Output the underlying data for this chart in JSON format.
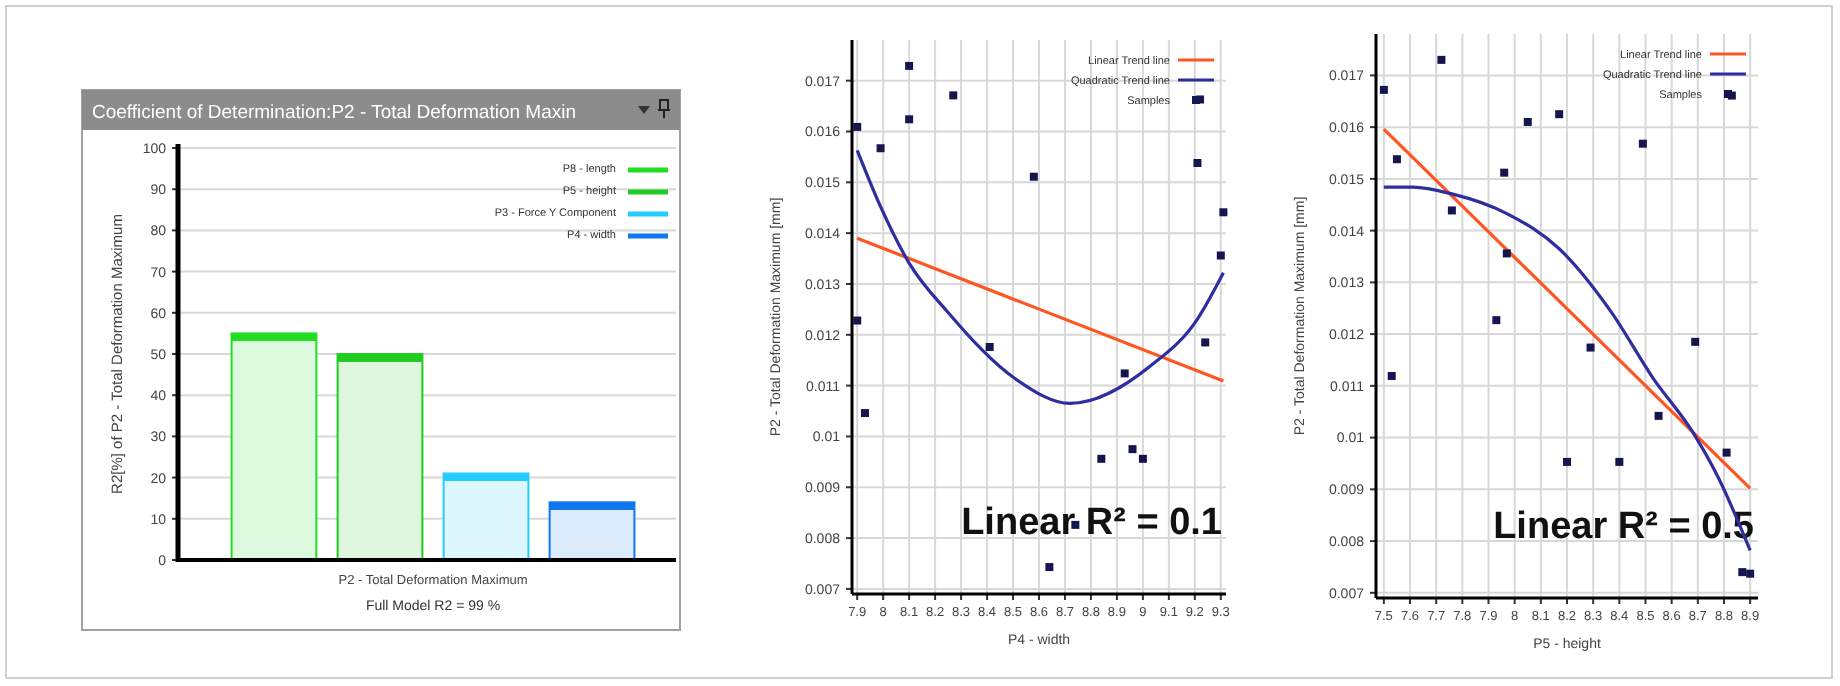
{
  "chart_data": [
    {
      "type": "bar",
      "title": "Coefficient of Determination:P2 - Total Deformation Maxin",
      "ylabel": "R2[%] of P2 - Total Deformation Maximum",
      "categories": [
        "P2 - Total Deformation Maximum"
      ],
      "series": [
        {
          "name": "P8 - length",
          "color": "#22dd22",
          "values": [
            55
          ]
        },
        {
          "name": "P5 - height",
          "color": "#22cc22",
          "values": [
            50
          ]
        },
        {
          "name": "P3 - Force Y Component",
          "color": "#22ccff",
          "values": [
            21
          ]
        },
        {
          "name": "P4 - width",
          "color": "#1177ee",
          "values": [
            14
          ]
        }
      ],
      "ylim": [
        0,
        100
      ],
      "yticks": [
        0,
        10,
        20,
        30,
        40,
        50,
        60,
        70,
        80,
        90,
        100
      ],
      "grid": "y",
      "legend": "top right",
      "annotations": [
        "Full Model R2 = 99 %"
      ]
    },
    {
      "type": "scatter",
      "xlabel": "P4 - width",
      "ylabel": "P2 - Total Deformation Maximum  [mm]",
      "series": [
        {
          "name": "Linear Trend line",
          "type": "line",
          "color": "#ff5522",
          "x": [
            7.9,
            9.31
          ],
          "values": [
            0.0139,
            0.01109
          ]
        },
        {
          "name": "Quadratic Trend line",
          "type": "line",
          "color": "#2e2e9e",
          "x": [
            7.9,
            7.99,
            8.1,
            8.25,
            8.51,
            8.72,
            9.03,
            9.21,
            9.31
          ],
          "values": [
            0.01563,
            0.01452,
            0.01341,
            0.01244,
            0.01113,
            0.01065,
            0.01139,
            0.01231,
            0.01322
          ]
        },
        {
          "name": "Samples",
          "type": "scatter",
          "color": "#151550",
          "marker": "square",
          "x": [
            7.9,
            7.9,
            7.93,
            7.99,
            8.1,
            8.1,
            8.27,
            8.41,
            8.58,
            8.64,
            8.74,
            8.84,
            8.93,
            8.96,
            9.0,
            9.21,
            9.22,
            9.24,
            9.3,
            9.31
          ],
          "values": [
            0.01609,
            0.01228,
            0.01046,
            0.01567,
            0.01624,
            0.01729,
            0.01671,
            0.01176,
            0.01511,
            0.00743,
            0.00826,
            0.00956,
            0.01124,
            0.00975,
            0.00956,
            0.01538,
            0.01663,
            0.01185,
            0.01356,
            0.01441
          ]
        }
      ],
      "xlim": [
        7.88,
        9.32
      ],
      "xticks": [
        7.9,
        8,
        8.1,
        8.2,
        8.3,
        8.4,
        8.5,
        8.6,
        8.7,
        8.8,
        8.9,
        9,
        9.1,
        9.2,
        9.3
      ],
      "ylim": [
        0.0069,
        0.0178
      ],
      "yticks": [
        0.007,
        0.008,
        0.009,
        0.01,
        0.011,
        0.012,
        0.013,
        0.014,
        0.015,
        0.016,
        0.017
      ],
      "grid": true,
      "legend": "top right",
      "annotations": [
        "Linear R² = 0.1"
      ]
    },
    {
      "type": "scatter",
      "xlabel": "P5 - height",
      "ylabel": "P2 - Total Deformation Maximum  [mm]",
      "series": [
        {
          "name": "Linear Trend line",
          "type": "line",
          "color": "#ff5522",
          "x": [
            7.5,
            8.9
          ],
          "values": [
            0.01596,
            0.00902
          ]
        },
        {
          "name": "Quadratic Trend line",
          "type": "line",
          "color": "#2e2e9e",
          "x": [
            7.5,
            7.61,
            7.76,
            7.97,
            8.17,
            8.37,
            8.53,
            8.68,
            8.78,
            8.9
          ],
          "values": [
            0.01484,
            0.01484,
            0.01471,
            0.01433,
            0.01365,
            0.01242,
            0.01114,
            0.01011,
            0.00921,
            0.00782
          ]
        },
        {
          "name": "Samples",
          "type": "scatter",
          "color": "#151550",
          "marker": "square",
          "x": [
            7.5,
            7.53,
            7.55,
            7.72,
            7.76,
            7.93,
            7.96,
            7.97,
            8.05,
            8.17,
            8.2,
            8.29,
            8.4,
            8.49,
            8.55,
            8.69,
            8.81,
            8.83,
            8.87,
            8.9
          ],
          "values": [
            0.01672,
            0.01119,
            0.01538,
            0.0173,
            0.01439,
            0.01227,
            0.01512,
            0.01356,
            0.0161,
            0.01625,
            0.00953,
            0.01174,
            0.00953,
            0.01568,
            0.01042,
            0.01185,
            0.00971,
            0.01661,
            0.0074,
            0.00737
          ]
        }
      ],
      "xlim": [
        7.47,
        8.93
      ],
      "xticks": [
        7.5,
        7.6,
        7.7,
        7.8,
        7.9,
        8,
        8.1,
        8.2,
        8.3,
        8.4,
        8.5,
        8.6,
        8.7,
        8.8,
        8.9
      ],
      "ylim": [
        0.0069,
        0.0178
      ],
      "yticks": [
        0.007,
        0.008,
        0.009,
        0.01,
        0.011,
        0.012,
        0.013,
        0.014,
        0.015,
        0.016,
        0.017
      ],
      "grid": true,
      "legend": "top right",
      "annotations": [
        "Linear R² = 0.5"
      ]
    }
  ]
}
